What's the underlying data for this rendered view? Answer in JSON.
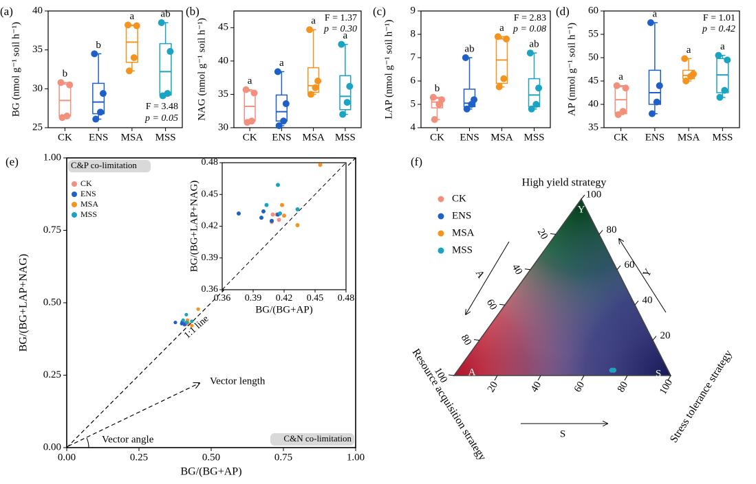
{
  "chart_data": [
    {
      "type": "box",
      "panel": "(a)",
      "ylabel": "BG (nmol g⁻¹ soil h⁻¹)",
      "ylim": [
        25,
        40
      ],
      "yticks": [
        25,
        30,
        35,
        40
      ],
      "categories": [
        "CK",
        "ENS",
        "MSA",
        "MSS"
      ],
      "colors": [
        "#f2907e",
        "#1f5fc8",
        "#f39320",
        "#1ba3c2"
      ],
      "points": [
        [
          30.8,
          30.5,
          26.5,
          26.3
        ],
        [
          34.5,
          29.4,
          27.0,
          26.1
        ],
        [
          38.2,
          38.1,
          34.0,
          32.3
        ],
        [
          38.5,
          34.8,
          29.4,
          29.1
        ]
      ],
      "boxes": [
        [
          26.3,
          26.5,
          28.5,
          30.6,
          30.8
        ],
        [
          26.1,
          26.8,
          28.3,
          30.7,
          34.5
        ],
        [
          32.3,
          33.4,
          36.0,
          38.1,
          38.2
        ],
        [
          29.1,
          29.2,
          32.2,
          35.8,
          38.5
        ]
      ],
      "letters": [
        "b",
        "b",
        "a",
        "ab"
      ],
      "stat_f": "F = 3.48",
      "stat_p": "p = 0.05",
      "annotation_corner": "lower right"
    },
    {
      "type": "box",
      "panel": "(b)",
      "ylabel": "NAG (nmol g⁻¹ soil h⁻¹)",
      "ylim": [
        30,
        47.5
      ],
      "yticks": [
        30,
        35,
        40,
        45
      ],
      "categories": [
        "CK",
        "ENS",
        "MSA",
        "MSS"
      ],
      "colors": [
        "#f2907e",
        "#1f5fc8",
        "#f39320",
        "#1ba3c2"
      ],
      "points": [
        [
          35.7,
          35.2,
          31.0,
          30.8
        ],
        [
          38.4,
          33.6,
          31.0,
          30.3
        ],
        [
          44.7,
          37.0,
          36.0,
          35.0
        ],
        [
          42.5,
          36.2,
          33.8,
          32.0
        ]
      ],
      "boxes": [
        [
          30.8,
          31.0,
          33.2,
          35.5,
          35.7
        ],
        [
          30.3,
          31.0,
          32.4,
          34.9,
          38.4
        ],
        [
          35.0,
          35.3,
          36.3,
          39.0,
          44.7
        ],
        [
          32.0,
          32.7,
          34.7,
          37.8,
          42.5
        ]
      ],
      "letters": [
        "a",
        "a",
        "a",
        "a"
      ],
      "stat_f": "F = 1.37",
      "stat_p": "p = 0.30",
      "annotation_corner": "upper right"
    },
    {
      "type": "box",
      "panel": "(c)",
      "ylabel": "LAP (nmol g⁻¹ soil h⁻¹)",
      "ylim": [
        4,
        9
      ],
      "yticks": [
        4,
        5,
        6,
        7,
        8,
        9
      ],
      "categories": [
        "CK",
        "ENS",
        "MSA",
        "MSS"
      ],
      "colors": [
        "#f2907e",
        "#1f5fc8",
        "#f39320",
        "#1ba3c2"
      ],
      "points": [
        [
          5.3,
          5.2,
          5.0,
          4.35
        ],
        [
          7.0,
          5.2,
          5.0,
          4.8
        ],
        [
          7.9,
          7.8,
          6.1,
          5.75
        ],
        [
          7.2,
          5.7,
          5.0,
          4.8
        ]
      ],
      "boxes": [
        [
          4.35,
          4.85,
          5.1,
          5.25,
          5.3
        ],
        [
          4.8,
          4.9,
          5.05,
          5.65,
          7.0
        ],
        [
          5.75,
          5.9,
          6.9,
          7.8,
          7.9
        ],
        [
          4.8,
          4.9,
          5.4,
          6.1,
          7.2
        ]
      ],
      "letters": [
        "b",
        "ab",
        "a",
        "ab"
      ],
      "stat_f": "F = 2.83",
      "stat_p": "p = 0.08",
      "annotation_corner": "upper right"
    },
    {
      "type": "box",
      "panel": "(d)",
      "ylabel": "AP (nmol g⁻¹ soil h⁻¹)",
      "ylim": [
        35,
        60
      ],
      "yticks": [
        35,
        40,
        45,
        50,
        55,
        60
      ],
      "categories": [
        "CK",
        "ENS",
        "MSA",
        "MSS"
      ],
      "colors": [
        "#f2907e",
        "#1f5fc8",
        "#f39320",
        "#1ba3c2"
      ],
      "points": [
        [
          44.0,
          43.5,
          38.5,
          37.8
        ],
        [
          57.5,
          44.0,
          40.5,
          38.0
        ],
        [
          49.8,
          46.5,
          46.0,
          45.0
        ],
        [
          50.5,
          49.5,
          43.0,
          41.5
        ]
      ],
      "boxes": [
        [
          37.8,
          38.0,
          41.0,
          43.8,
          44.0
        ],
        [
          38.0,
          40.0,
          42.5,
          47.3,
          57.5
        ],
        [
          45.0,
          45.5,
          46.2,
          47.3,
          49.8
        ],
        [
          41.5,
          42.5,
          46.3,
          49.8,
          50.5
        ]
      ],
      "letters": [
        "a",
        "a",
        "a",
        "a"
      ],
      "stat_f": "F = 1.01",
      "stat_p": "p = 0.42",
      "annotation_corner": "upper right"
    },
    {
      "type": "scatter",
      "panel": "(e)",
      "xlabel": "BG/(BG+AP)",
      "ylabel": "BG/(BG+LAP+NAG)",
      "xlim": [
        0,
        1
      ],
      "ylim": [
        0,
        1
      ],
      "xticks": [
        {
          "value": 0,
          "label": "0.00"
        },
        0.25,
        {
          "value": 0.5,
          "label": "0.50"
        },
        0.75,
        {
          "value": 1,
          "label": "1.00"
        }
      ],
      "yticks": [
        {
          "value": 0,
          "label": "0.00"
        },
        0.25,
        {
          "value": 0.5,
          "label": "0.50"
        },
        0.75,
        {
          "value": 1,
          "label": "1.00"
        }
      ],
      "legend": "upper left",
      "series": [
        {
          "name": "CK",
          "color": "#f2907e",
          "x": [
            0.409,
            0.415,
            0.408,
            0.413
          ],
          "y": [
            0.431,
            0.426,
            0.424,
            0.431
          ]
        },
        {
          "name": "ENS",
          "color": "#1f5fc8",
          "x": [
            0.376,
            0.398,
            0.4,
            0.408,
            0.414
          ],
          "y": [
            0.432,
            0.428,
            0.434,
            0.425,
            0.431
          ]
        },
        {
          "name": "MSA",
          "color": "#f39320",
          "x": [
            0.455,
            0.418,
            0.42,
            0.433
          ],
          "y": [
            0.478,
            0.44,
            0.43,
            0.421
          ]
        },
        {
          "name": "MSS",
          "color": "#1ba3c2",
          "x": [
            0.403,
            0.414,
            0.416,
            0.433
          ],
          "y": [
            0.44,
            0.459,
            0.432,
            0.436
          ]
        }
      ],
      "annotations": {
        "cp": "C&P co-limitation",
        "cn": "C&N co-limitation",
        "one_to_one": "1:1 line",
        "vector_length": "Vector length",
        "vector_angle": "Vector angle"
      },
      "inset": {
        "xlim": [
          0.36,
          0.48
        ],
        "ylim": [
          0.36,
          0.48
        ],
        "xticks": [
          0.36,
          0.39,
          0.42,
          0.45,
          0.48
        ],
        "yticks": [
          0.36,
          0.39,
          0.42,
          0.45,
          0.48
        ]
      }
    },
    {
      "type": "ternary",
      "panel": "(f)",
      "y_label": "High yield strategy",
      "a_label": "Resource acquisition strategy",
      "s_label": "Stress tolerance strategy",
      "corners": {
        "y": "Y",
        "a": "A",
        "s": "S"
      },
      "ticks": [
        20,
        40,
        60,
        80,
        100
      ],
      "series": [
        {
          "name": "CK",
          "color": "#f2907e",
          "A": [
            25,
            26
          ],
          "S": [
            72,
            71
          ],
          "Y": [
            3,
            3
          ]
        },
        {
          "name": "ENS",
          "color": "#1f5fc8",
          "A": [
            26,
            25
          ],
          "S": [
            71,
            72
          ],
          "Y": [
            3,
            3
          ]
        },
        {
          "name": "MSA",
          "color": "#f39320",
          "A": [
            25
          ],
          "S": [
            72
          ],
          "Y": [
            3
          ]
        },
        {
          "name": "MSS",
          "color": "#1ba3c2",
          "A": [
            26,
            25
          ],
          "S": [
            71,
            72
          ],
          "Y": [
            3,
            3
          ]
        }
      ]
    }
  ]
}
